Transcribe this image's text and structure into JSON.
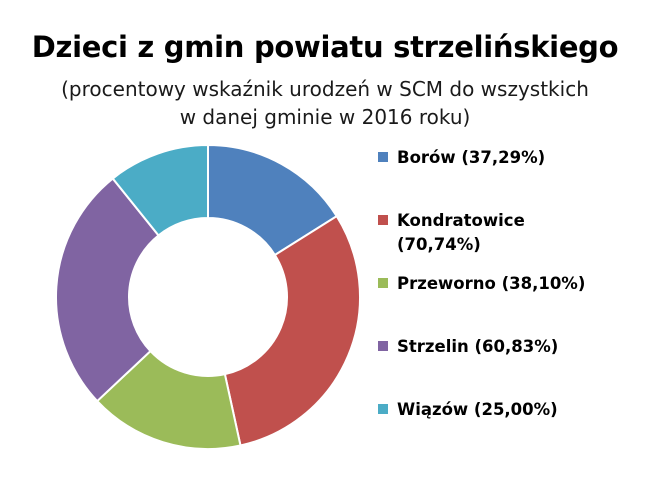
{
  "chart_data": {
    "type": "pie",
    "title": "Dzieci z gmin powiatu strzelińskiego",
    "subtitle_lines": [
      "(procentowy wskaźnik urodzeń w SCM do wszystkich",
      "w danej gminie w 2016 roku)"
    ],
    "categories": [
      "Borów",
      "Kondratowice",
      "Przeworno",
      "Strzelin",
      "Wiązów"
    ],
    "values": [
      37.29,
      70.74,
      38.1,
      60.83,
      25.0
    ],
    "legend_labels": [
      "Borów (37,29%)",
      "Kondratowice (70,74%)",
      "Przeworno (38,10%)",
      "Strzelin (60,83%)",
      "Wiązów (25,00%)"
    ],
    "colors": [
      "#4F81BD",
      "#C0504D",
      "#9BBB59",
      "#8064A2",
      "#4BACC6"
    ],
    "donut": true,
    "legend_position": "right"
  }
}
